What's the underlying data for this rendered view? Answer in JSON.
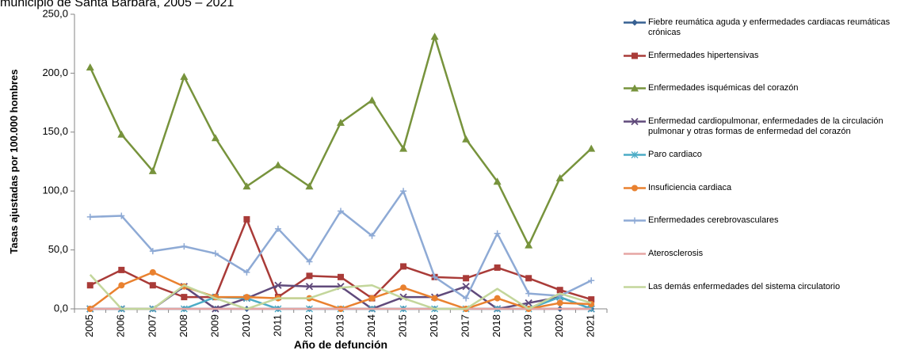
{
  "chart_data": {
    "type": "line",
    "title": "municipio de Santa Bárbara, 2005 – 2021",
    "x_label": "Año de defunción",
    "y_label": "Tasas ajustadas por 100.000 hombres",
    "categories": [
      "2005",
      "2006",
      "2007",
      "2008",
      "2009",
      "2010",
      "2011",
      "2012",
      "2013",
      "2014",
      "2015",
      "2016",
      "2017",
      "2018",
      "2019",
      "2020",
      "2021"
    ],
    "ylim": [
      0,
      250
    ],
    "yticks": [
      {
        "value": 0,
        "label": "0,0"
      },
      {
        "value": 50,
        "label": "50,0"
      },
      {
        "value": 100,
        "label": "100,0"
      },
      {
        "value": 150,
        "label": "150,0"
      },
      {
        "value": 200,
        "label": "200,0"
      },
      {
        "value": 250,
        "label": "250,0"
      }
    ],
    "grid": false,
    "legend": "right",
    "series": [
      {
        "name": "Fiebre reumática aguda y enfermedades cardiacas reumáticas crónicas",
        "color": "#376092",
        "marker": "diamond",
        "values": [
          0,
          0,
          0,
          0,
          0,
          0,
          0,
          0,
          0,
          0,
          0,
          0,
          0,
          0,
          0,
          0,
          0
        ]
      },
      {
        "name": "Enfermedades hipertensivas",
        "color": "#a93b38",
        "marker": "square",
        "values": [
          20,
          33,
          20,
          10,
          10,
          76,
          10,
          28,
          27,
          9,
          36,
          27,
          26,
          35,
          26,
          16,
          8
        ]
      },
      {
        "name": "Enfermedades isquémicas del corazón",
        "color": "#77933c",
        "marker": "triangle",
        "values": [
          205,
          148,
          117,
          197,
          145,
          104,
          122,
          104,
          158,
          177,
          136,
          231,
          144,
          108,
          54,
          111,
          136
        ]
      },
      {
        "name": "Enfermedad cardiopulmonar, enfermedades de la circulación pulmonar y otras formas de enfermedad del corazón",
        "color": "#604a7b",
        "marker": "x",
        "values": [
          0,
          0,
          0,
          19,
          0,
          9,
          20,
          19,
          19,
          0,
          10,
          10,
          19,
          0,
          5,
          10,
          0
        ]
      },
      {
        "name": "Paro cardiaco",
        "color": "#4bacc6",
        "marker": "star",
        "values": [
          0,
          0,
          0,
          0,
          10,
          9,
          0,
          0,
          0,
          0,
          0,
          0,
          0,
          0,
          0,
          10,
          0
        ]
      },
      {
        "name": "Insuficiencia cardiaca",
        "color": "#e9812f",
        "marker": "circle",
        "values": [
          0,
          20,
          31,
          19,
          10,
          10,
          9,
          9,
          0,
          9,
          18,
          9,
          0,
          9,
          0,
          5,
          4
        ]
      },
      {
        "name": "Enfermedades cerebrovasculares",
        "color": "#8eaad5",
        "marker": "plus",
        "values": [
          78,
          79,
          49,
          53,
          47,
          31,
          68,
          40,
          83,
          62,
          100,
          27,
          9,
          64,
          13,
          11,
          24
        ]
      },
      {
        "name": "Aterosclerosis",
        "color": "#e6a5a3",
        "marker": "none",
        "values": [
          0,
          0,
          0,
          0,
          0,
          0,
          0,
          0,
          0,
          0,
          0,
          0,
          0,
          0,
          0,
          0,
          0
        ]
      },
      {
        "name": "Las demás enfermedades del sistema circulatorio",
        "color": "#c3d69b",
        "marker": "none",
        "values": [
          29,
          0,
          0,
          20,
          9,
          0,
          9,
          9,
          18,
          20,
          9,
          0,
          0,
          17,
          0,
          13,
          5
        ]
      }
    ]
  }
}
